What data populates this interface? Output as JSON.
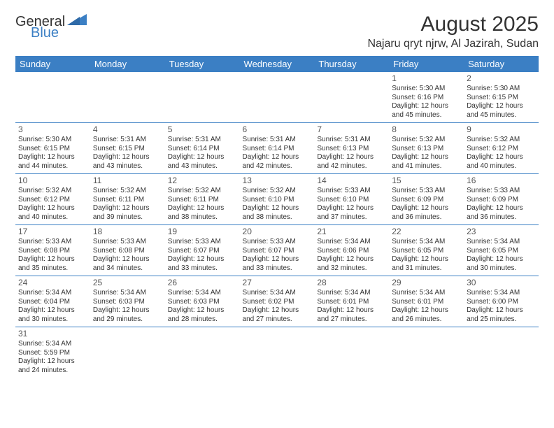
{
  "logo": {
    "word1": "General",
    "word2": "Blue"
  },
  "title": "August 2025",
  "location": "Najaru qryt njrw, Al Jazirah, Sudan",
  "colors": {
    "header_bg": "#3b7fc4",
    "header_text": "#ffffff",
    "row_divider": "#3b7fc4",
    "body_text": "#333333",
    "background": "#ffffff"
  },
  "typography": {
    "title_fontsize": 30,
    "location_fontsize": 16,
    "weekday_fontsize": 13,
    "daynum_fontsize": 12,
    "cell_fontsize": 10
  },
  "weekdays": [
    "Sunday",
    "Monday",
    "Tuesday",
    "Wednesday",
    "Thursday",
    "Friday",
    "Saturday"
  ],
  "weeks": [
    [
      null,
      null,
      null,
      null,
      null,
      {
        "d": "1",
        "sr": "Sunrise: 5:30 AM",
        "ss": "Sunset: 6:16 PM",
        "dl1": "Daylight: 12 hours",
        "dl2": "and 45 minutes."
      },
      {
        "d": "2",
        "sr": "Sunrise: 5:30 AM",
        "ss": "Sunset: 6:15 PM",
        "dl1": "Daylight: 12 hours",
        "dl2": "and 45 minutes."
      }
    ],
    [
      {
        "d": "3",
        "sr": "Sunrise: 5:30 AM",
        "ss": "Sunset: 6:15 PM",
        "dl1": "Daylight: 12 hours",
        "dl2": "and 44 minutes."
      },
      {
        "d": "4",
        "sr": "Sunrise: 5:31 AM",
        "ss": "Sunset: 6:15 PM",
        "dl1": "Daylight: 12 hours",
        "dl2": "and 43 minutes."
      },
      {
        "d": "5",
        "sr": "Sunrise: 5:31 AM",
        "ss": "Sunset: 6:14 PM",
        "dl1": "Daylight: 12 hours",
        "dl2": "and 43 minutes."
      },
      {
        "d": "6",
        "sr": "Sunrise: 5:31 AM",
        "ss": "Sunset: 6:14 PM",
        "dl1": "Daylight: 12 hours",
        "dl2": "and 42 minutes."
      },
      {
        "d": "7",
        "sr": "Sunrise: 5:31 AM",
        "ss": "Sunset: 6:13 PM",
        "dl1": "Daylight: 12 hours",
        "dl2": "and 42 minutes."
      },
      {
        "d": "8",
        "sr": "Sunrise: 5:32 AM",
        "ss": "Sunset: 6:13 PM",
        "dl1": "Daylight: 12 hours",
        "dl2": "and 41 minutes."
      },
      {
        "d": "9",
        "sr": "Sunrise: 5:32 AM",
        "ss": "Sunset: 6:12 PM",
        "dl1": "Daylight: 12 hours",
        "dl2": "and 40 minutes."
      }
    ],
    [
      {
        "d": "10",
        "sr": "Sunrise: 5:32 AM",
        "ss": "Sunset: 6:12 PM",
        "dl1": "Daylight: 12 hours",
        "dl2": "and 40 minutes."
      },
      {
        "d": "11",
        "sr": "Sunrise: 5:32 AM",
        "ss": "Sunset: 6:11 PM",
        "dl1": "Daylight: 12 hours",
        "dl2": "and 39 minutes."
      },
      {
        "d": "12",
        "sr": "Sunrise: 5:32 AM",
        "ss": "Sunset: 6:11 PM",
        "dl1": "Daylight: 12 hours",
        "dl2": "and 38 minutes."
      },
      {
        "d": "13",
        "sr": "Sunrise: 5:32 AM",
        "ss": "Sunset: 6:10 PM",
        "dl1": "Daylight: 12 hours",
        "dl2": "and 38 minutes."
      },
      {
        "d": "14",
        "sr": "Sunrise: 5:33 AM",
        "ss": "Sunset: 6:10 PM",
        "dl1": "Daylight: 12 hours",
        "dl2": "and 37 minutes."
      },
      {
        "d": "15",
        "sr": "Sunrise: 5:33 AM",
        "ss": "Sunset: 6:09 PM",
        "dl1": "Daylight: 12 hours",
        "dl2": "and 36 minutes."
      },
      {
        "d": "16",
        "sr": "Sunrise: 5:33 AM",
        "ss": "Sunset: 6:09 PM",
        "dl1": "Daylight: 12 hours",
        "dl2": "and 36 minutes."
      }
    ],
    [
      {
        "d": "17",
        "sr": "Sunrise: 5:33 AM",
        "ss": "Sunset: 6:08 PM",
        "dl1": "Daylight: 12 hours",
        "dl2": "and 35 minutes."
      },
      {
        "d": "18",
        "sr": "Sunrise: 5:33 AM",
        "ss": "Sunset: 6:08 PM",
        "dl1": "Daylight: 12 hours",
        "dl2": "and 34 minutes."
      },
      {
        "d": "19",
        "sr": "Sunrise: 5:33 AM",
        "ss": "Sunset: 6:07 PM",
        "dl1": "Daylight: 12 hours",
        "dl2": "and 33 minutes."
      },
      {
        "d": "20",
        "sr": "Sunrise: 5:33 AM",
        "ss": "Sunset: 6:07 PM",
        "dl1": "Daylight: 12 hours",
        "dl2": "and 33 minutes."
      },
      {
        "d": "21",
        "sr": "Sunrise: 5:34 AM",
        "ss": "Sunset: 6:06 PM",
        "dl1": "Daylight: 12 hours",
        "dl2": "and 32 minutes."
      },
      {
        "d": "22",
        "sr": "Sunrise: 5:34 AM",
        "ss": "Sunset: 6:05 PM",
        "dl1": "Daylight: 12 hours",
        "dl2": "and 31 minutes."
      },
      {
        "d": "23",
        "sr": "Sunrise: 5:34 AM",
        "ss": "Sunset: 6:05 PM",
        "dl1": "Daylight: 12 hours",
        "dl2": "and 30 minutes."
      }
    ],
    [
      {
        "d": "24",
        "sr": "Sunrise: 5:34 AM",
        "ss": "Sunset: 6:04 PM",
        "dl1": "Daylight: 12 hours",
        "dl2": "and 30 minutes."
      },
      {
        "d": "25",
        "sr": "Sunrise: 5:34 AM",
        "ss": "Sunset: 6:03 PM",
        "dl1": "Daylight: 12 hours",
        "dl2": "and 29 minutes."
      },
      {
        "d": "26",
        "sr": "Sunrise: 5:34 AM",
        "ss": "Sunset: 6:03 PM",
        "dl1": "Daylight: 12 hours",
        "dl2": "and 28 minutes."
      },
      {
        "d": "27",
        "sr": "Sunrise: 5:34 AM",
        "ss": "Sunset: 6:02 PM",
        "dl1": "Daylight: 12 hours",
        "dl2": "and 27 minutes."
      },
      {
        "d": "28",
        "sr": "Sunrise: 5:34 AM",
        "ss": "Sunset: 6:01 PM",
        "dl1": "Daylight: 12 hours",
        "dl2": "and 27 minutes."
      },
      {
        "d": "29",
        "sr": "Sunrise: 5:34 AM",
        "ss": "Sunset: 6:01 PM",
        "dl1": "Daylight: 12 hours",
        "dl2": "and 26 minutes."
      },
      {
        "d": "30",
        "sr": "Sunrise: 5:34 AM",
        "ss": "Sunset: 6:00 PM",
        "dl1": "Daylight: 12 hours",
        "dl2": "and 25 minutes."
      }
    ],
    [
      {
        "d": "31",
        "sr": "Sunrise: 5:34 AM",
        "ss": "Sunset: 5:59 PM",
        "dl1": "Daylight: 12 hours",
        "dl2": "and 24 minutes."
      },
      null,
      null,
      null,
      null,
      null,
      null
    ]
  ]
}
